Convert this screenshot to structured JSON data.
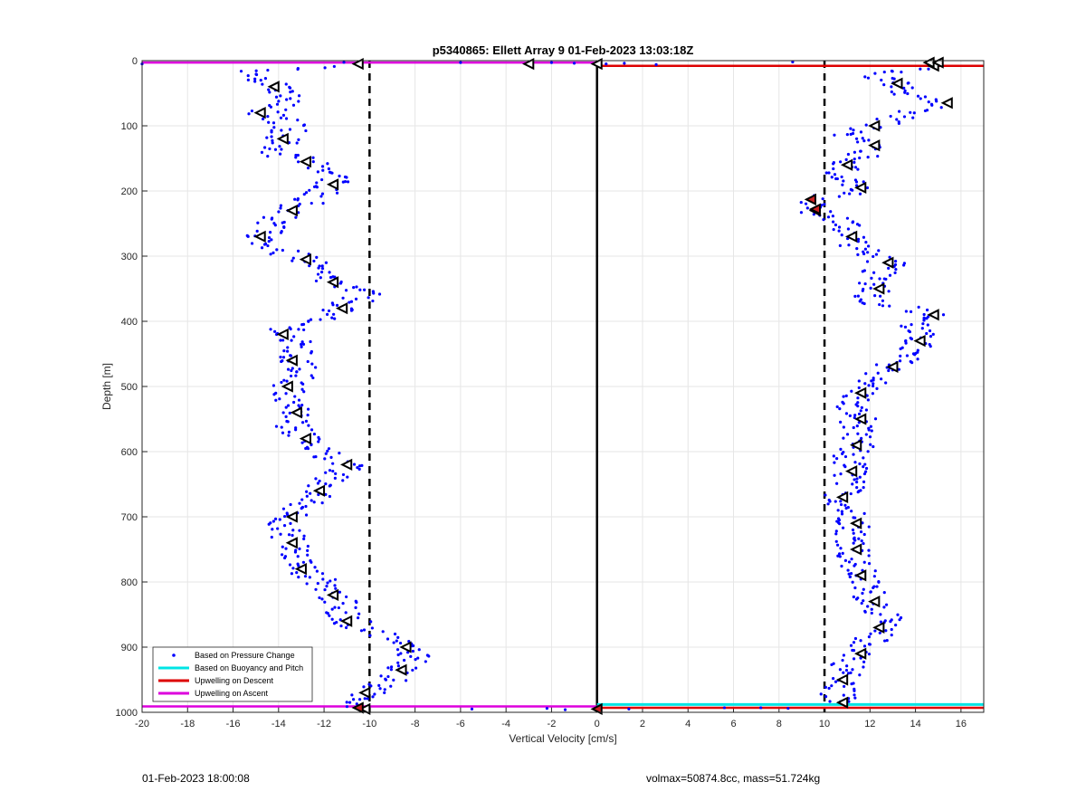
{
  "chart_data": {
    "type": "scatter",
    "title": "p5340865: Ellett Array 9 01-Feb-2023 13:03:18Z",
    "xlabel": "Vertical Velocity [cm/s]",
    "ylabel": "Depth [m]",
    "xlim": [
      -20,
      17
    ],
    "ylim": [
      0,
      1000
    ],
    "y_reversed": true,
    "grid": true,
    "xticks": [
      "-20",
      "-18",
      "-16",
      "-14",
      "-12",
      "-10",
      "-8",
      "-6",
      "-4",
      "-2",
      "0",
      "2",
      "4",
      "6",
      "8",
      "10",
      "12",
      "14",
      "16"
    ],
    "yticks": [
      "0",
      "100",
      "200",
      "300",
      "400",
      "500",
      "600",
      "700",
      "800",
      "900",
      "1000"
    ],
    "legend_position": "bottom-left",
    "legend": [
      {
        "label": "Based on Pressure Change",
        "color": "#0000ff",
        "style": "dot"
      },
      {
        "label": "Based on Buoyancy and Pitch",
        "color": "#00e5e5",
        "style": "line"
      },
      {
        "label": "Upwelling on Descent",
        "color": "#dd0000",
        "style": "line"
      },
      {
        "label": "Upwelling on Ascent",
        "color": "#dd00dd",
        "style": "line"
      }
    ],
    "reference_lines": {
      "dashed_x": [
        -10,
        10
      ],
      "solid_x": [
        0
      ]
    },
    "upwelling_descent": [
      {
        "depth": 8,
        "x_from": 0,
        "x_to": 17
      },
      {
        "depth": 993,
        "x_from": 0,
        "x_to": 17
      }
    ],
    "upwelling_ascent": [
      {
        "depth": 3,
        "x_from": -20,
        "x_to": 0
      },
      {
        "depth": 991,
        "x_from": -20,
        "x_to": 0
      }
    ],
    "buoyancy_pitch": [
      {
        "depth": 988,
        "x_from": 0,
        "x_to": 17
      }
    ],
    "descent_profile": [
      [
        8,
        14.8
      ],
      [
        20,
        12.0
      ],
      [
        35,
        13.2
      ],
      [
        50,
        13.0
      ],
      [
        65,
        15.4
      ],
      [
        80,
        13.8
      ],
      [
        100,
        12.2
      ],
      [
        115,
        11.2
      ],
      [
        130,
        12.2
      ],
      [
        145,
        11.6
      ],
      [
        160,
        11.0
      ],
      [
        175,
        10.6
      ],
      [
        195,
        11.6
      ],
      [
        215,
        9.5
      ],
      [
        230,
        9.6
      ],
      [
        250,
        11.0
      ],
      [
        270,
        11.2
      ],
      [
        290,
        11.6
      ],
      [
        310,
        12.8
      ],
      [
        330,
        12.2
      ],
      [
        350,
        12.4
      ],
      [
        370,
        12.0
      ],
      [
        390,
        14.8
      ],
      [
        410,
        13.8
      ],
      [
        430,
        14.2
      ],
      [
        450,
        13.6
      ],
      [
        470,
        13.0
      ],
      [
        490,
        12.2
      ],
      [
        510,
        11.6
      ],
      [
        530,
        11.0
      ],
      [
        550,
        11.6
      ],
      [
        570,
        11.2
      ],
      [
        590,
        11.4
      ],
      [
        610,
        11.0
      ],
      [
        630,
        11.2
      ],
      [
        650,
        11.0
      ],
      [
        670,
        10.8
      ],
      [
        690,
        11.0
      ],
      [
        710,
        11.4
      ],
      [
        730,
        11.2
      ],
      [
        750,
        11.4
      ],
      [
        770,
        11.2
      ],
      [
        790,
        11.6
      ],
      [
        810,
        11.8
      ],
      [
        830,
        12.2
      ],
      [
        850,
        12.6
      ],
      [
        870,
        12.4
      ],
      [
        890,
        12.0
      ],
      [
        910,
        11.6
      ],
      [
        930,
        11.0
      ],
      [
        950,
        10.8
      ],
      [
        970,
        10.6
      ],
      [
        985,
        10.8
      ]
    ],
    "ascent_profile": [
      [
        5,
        -10.5
      ],
      [
        20,
        -15.5
      ],
      [
        40,
        -14.2
      ],
      [
        60,
        -13.6
      ],
      [
        80,
        -14.8
      ],
      [
        100,
        -13.4
      ],
      [
        120,
        -13.8
      ],
      [
        140,
        -14.2
      ],
      [
        155,
        -12.8
      ],
      [
        175,
        -11.6
      ],
      [
        190,
        -11.6
      ],
      [
        210,
        -12.4
      ],
      [
        230,
        -13.4
      ],
      [
        250,
        -14.4
      ],
      [
        270,
        -14.8
      ],
      [
        290,
        -14.2
      ],
      [
        305,
        -12.8
      ],
      [
        320,
        -12.6
      ],
      [
        340,
        -11.6
      ],
      [
        360,
        -10.2
      ],
      [
        380,
        -11.2
      ],
      [
        400,
        -12.8
      ],
      [
        420,
        -13.8
      ],
      [
        440,
        -13.2
      ],
      [
        460,
        -13.4
      ],
      [
        480,
        -12.8
      ],
      [
        500,
        -13.6
      ],
      [
        520,
        -13.6
      ],
      [
        540,
        -13.2
      ],
      [
        560,
        -13.4
      ],
      [
        580,
        -12.8
      ],
      [
        600,
        -12.0
      ],
      [
        620,
        -11.0
      ],
      [
        640,
        -11.8
      ],
      [
        660,
        -12.2
      ],
      [
        680,
        -12.8
      ],
      [
        700,
        -13.4
      ],
      [
        720,
        -13.8
      ],
      [
        740,
        -13.4
      ],
      [
        760,
        -13.2
      ],
      [
        780,
        -13.0
      ],
      [
        800,
        -12.0
      ],
      [
        820,
        -11.6
      ],
      [
        840,
        -11.2
      ],
      [
        860,
        -11.0
      ],
      [
        880,
        -9.4
      ],
      [
        900,
        -8.4
      ],
      [
        915,
        -7.8
      ],
      [
        935,
        -8.6
      ],
      [
        955,
        -9.4
      ],
      [
        970,
        -10.2
      ],
      [
        985,
        -10.4
      ],
      [
        995,
        -10.2
      ]
    ],
    "surface_markers": [
      [
        5,
        -3.0
      ],
      [
        5,
        0
      ],
      [
        3,
        14.6
      ],
      [
        3,
        15.0
      ]
    ],
    "red_markers": [
      [
        213,
        9.4
      ],
      [
        228,
        9.6
      ],
      [
        993,
        -10.5
      ],
      [
        995,
        0
      ]
    ]
  },
  "footer": {
    "left": "01-Feb-2023 18:00:08",
    "right": "volmax=50874.8cc, mass=51.724kg"
  }
}
